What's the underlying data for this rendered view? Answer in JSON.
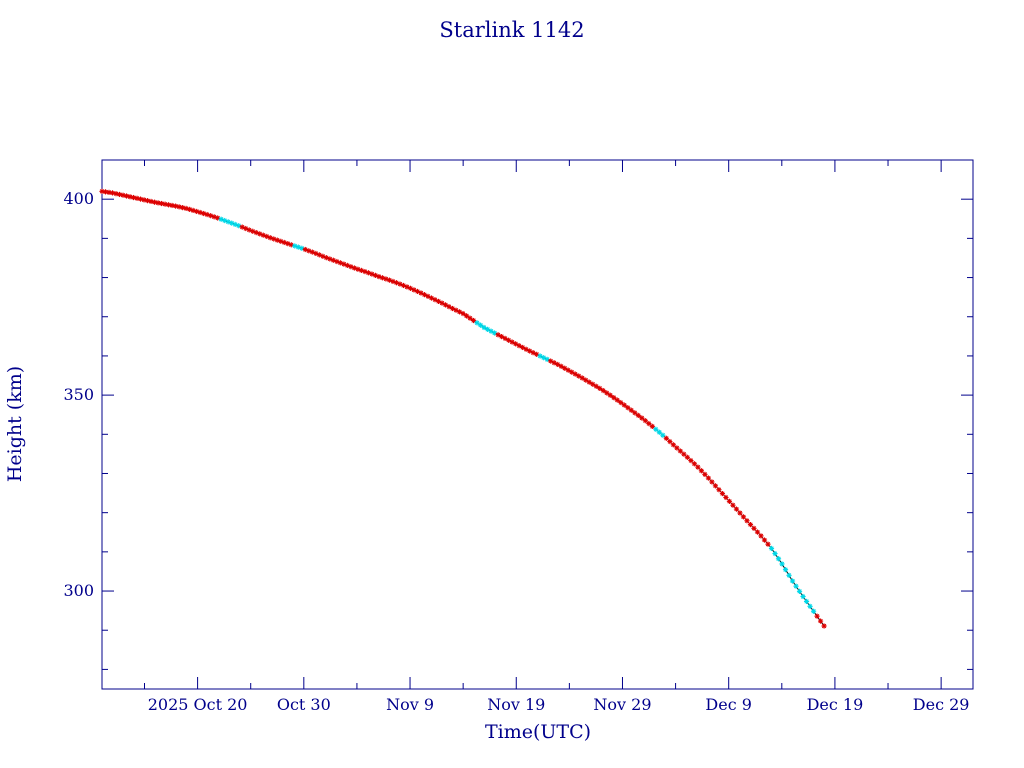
{
  "colors": {
    "axis": "#00008b",
    "text": "#00008b",
    "curve": "#000000",
    "marker_main": "#dd0000",
    "marker_alt": "#00d8e8"
  },
  "chart_data": {
    "type": "scatter",
    "title": "Starlink 1142",
    "xlabel": "Time(UTC)",
    "ylabel": "Height (km)",
    "xlim": [
      "2025-10-11",
      "2026-01-01"
    ],
    "ylim": [
      275,
      410
    ],
    "x_ticks": [
      {
        "date": "2025-10-20",
        "label": "2025 Oct 20"
      },
      {
        "date": "2025-10-30",
        "label": "Oct 30"
      },
      {
        "date": "2025-11-09",
        "label": "Nov  9"
      },
      {
        "date": "2025-11-19",
        "label": "Nov 19"
      },
      {
        "date": "2025-11-29",
        "label": "Nov 29"
      },
      {
        "date": "2025-12-09",
        "label": "Dec  9"
      },
      {
        "date": "2025-12-19",
        "label": "Dec 19"
      },
      {
        "date": "2025-12-29",
        "label": "Dec 29"
      }
    ],
    "y_ticks": [
      {
        "value": 300,
        "label": "300"
      },
      {
        "value": 350,
        "label": "350"
      },
      {
        "value": 400,
        "label": "400"
      }
    ],
    "grid": false,
    "series": [
      {
        "points": [
          [
            "2025-10-11",
            402.0
          ],
          [
            "2025-10-12",
            401.6
          ],
          [
            "2025-10-13",
            401.0
          ],
          [
            "2025-10-14",
            400.4
          ],
          [
            "2025-10-15",
            399.8
          ],
          [
            "2025-10-16",
            399.2
          ],
          [
            "2025-10-17",
            398.7
          ],
          [
            "2025-10-18",
            398.2
          ],
          [
            "2025-10-19",
            397.6
          ],
          [
            "2025-10-20",
            396.8
          ],
          [
            "2025-10-21",
            396.0
          ],
          [
            "2025-10-22",
            395.1
          ],
          [
            "2025-10-23",
            394.1
          ],
          [
            "2025-10-24",
            393.1
          ],
          [
            "2025-10-25",
            392.0
          ],
          [
            "2025-10-26",
            391.0
          ],
          [
            "2025-10-27",
            390.0
          ],
          [
            "2025-10-28",
            389.1
          ],
          [
            "2025-10-29",
            388.2
          ],
          [
            "2025-10-30",
            387.3
          ],
          [
            "2025-10-31",
            386.3
          ],
          [
            "2025-11-01",
            385.2
          ],
          [
            "2025-11-02",
            384.2
          ],
          [
            "2025-11-03",
            383.2
          ],
          [
            "2025-11-04",
            382.2
          ],
          [
            "2025-11-05",
            381.3
          ],
          [
            "2025-11-06",
            380.3
          ],
          [
            "2025-11-07",
            379.4
          ],
          [
            "2025-11-08",
            378.4
          ],
          [
            "2025-11-09",
            377.3
          ],
          [
            "2025-11-10",
            376.1
          ],
          [
            "2025-11-11",
            374.8
          ],
          [
            "2025-11-12",
            373.5
          ],
          [
            "2025-11-13",
            372.1
          ],
          [
            "2025-11-14",
            370.8
          ],
          [
            "2025-11-15",
            369.0
          ],
          [
            "2025-11-16",
            367.2
          ],
          [
            "2025-11-17",
            365.8
          ],
          [
            "2025-11-18",
            364.4
          ],
          [
            "2025-11-19",
            363.0
          ],
          [
            "2025-11-20",
            361.6
          ],
          [
            "2025-11-21",
            360.3
          ],
          [
            "2025-11-22",
            359.0
          ],
          [
            "2025-11-23",
            357.7
          ],
          [
            "2025-11-24",
            356.2
          ],
          [
            "2025-11-25",
            354.7
          ],
          [
            "2025-11-26",
            353.1
          ],
          [
            "2025-11-27",
            351.5
          ],
          [
            "2025-11-28",
            349.7
          ],
          [
            "2025-11-29",
            347.8
          ],
          [
            "2025-11-30",
            345.8
          ],
          [
            "2025-12-01",
            343.8
          ],
          [
            "2025-12-02",
            341.6
          ],
          [
            "2025-12-03",
            339.3
          ],
          [
            "2025-12-04",
            336.8
          ],
          [
            "2025-12-05",
            334.4
          ],
          [
            "2025-12-06",
            331.9
          ],
          [
            "2025-12-07",
            329.1
          ],
          [
            "2025-12-08",
            326.1
          ],
          [
            "2025-12-09",
            323.1
          ],
          [
            "2025-12-10",
            320.1
          ],
          [
            "2025-12-11",
            317.1
          ],
          [
            "2025-12-12",
            314.2
          ],
          [
            "2025-12-13",
            311.0
          ],
          [
            "2025-12-14",
            307.0
          ],
          [
            "2025-12-15",
            302.6
          ],
          [
            "2025-12-16",
            298.6
          ],
          [
            "2025-12-17",
            294.8
          ],
          [
            "2025-12-18",
            291.0
          ]
        ],
        "alt_marker_ranges": [
          [
            "2025-10-22",
            "2025-10-24"
          ],
          [
            "2025-10-29",
            "2025-10-30"
          ],
          [
            "2025-11-15",
            "2025-11-17"
          ],
          [
            "2025-11-21",
            "2025-11-22"
          ],
          [
            "2025-12-02",
            "2025-12-03"
          ],
          [
            "2025-12-13",
            "2025-12-17"
          ]
        ]
      }
    ]
  }
}
